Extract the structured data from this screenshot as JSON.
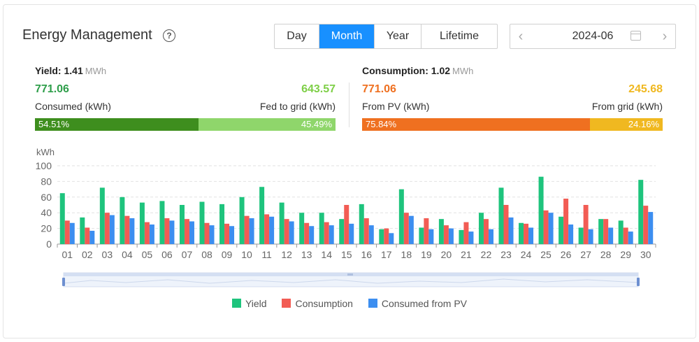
{
  "header": {
    "title": "Energy Management",
    "help_icon": "question-circle-icon",
    "tabs": [
      {
        "label": "Day",
        "active": false
      },
      {
        "label": "Month",
        "active": true
      },
      {
        "label": "Year",
        "active": false
      },
      {
        "label": "Lifetime",
        "active": false
      }
    ],
    "date": "2024-06",
    "prev_icon": "chevron-left-icon",
    "next_icon": "chevron-right-icon",
    "calendar_icon": "calendar-icon"
  },
  "yield": {
    "label": "Yield:",
    "value": "1.41",
    "unit": "MWh",
    "left_value": "771.06",
    "left_label": "Consumed (kWh)",
    "right_value": "643.57",
    "right_label": "Fed to grid (kWh)",
    "left_pct": "54.51%",
    "right_pct": "45.49%",
    "left_fraction": 0.5451,
    "left_color": "#3e8e1e",
    "right_color": "#8fd66b",
    "left_value_color": "#2e9e4a",
    "right_value_color": "#7ecf47"
  },
  "consumption": {
    "label": "Consumption:",
    "value": "1.02",
    "unit": "MWh",
    "left_value": "771.06",
    "left_label": "From PV (kWh)",
    "right_value": "245.68",
    "right_label": "From grid (kWh)",
    "left_pct": "75.84%",
    "right_pct": "24.16%",
    "left_fraction": 0.7584,
    "left_color": "#ef7020",
    "right_color": "#f0b820",
    "left_value_color": "#ef7020",
    "right_value_color": "#f0b820"
  },
  "chart_data": {
    "type": "bar",
    "ylabel": "kWh",
    "ylim": [
      0,
      100
    ],
    "yticks": [
      "0",
      "20",
      "40",
      "60",
      "80",
      "100"
    ],
    "grid": true,
    "categories": [
      "01",
      "02",
      "03",
      "04",
      "05",
      "06",
      "07",
      "08",
      "09",
      "10",
      "11",
      "12",
      "13",
      "14",
      "15",
      "16",
      "17",
      "18",
      "19",
      "20",
      "21",
      "22",
      "23",
      "24",
      "25",
      "26",
      "27",
      "28",
      "29",
      "30"
    ],
    "series": [
      {
        "name": "Yield",
        "color": "#1ec47d",
        "values": [
          65,
          34,
          72,
          60,
          53,
          55,
          50,
          54,
          51,
          60,
          73,
          53,
          40,
          40,
          32,
          51,
          19,
          70,
          21,
          32,
          18,
          40,
          72,
          27,
          86,
          35,
          21,
          32,
          30,
          82
        ]
      },
      {
        "name": "Consumption",
        "color": "#f25c54",
        "values": [
          30,
          21,
          40,
          36,
          28,
          33,
          32,
          27,
          26,
          36,
          38,
          32,
          27,
          28,
          50,
          33,
          20,
          40,
          33,
          24,
          28,
          32,
          50,
          26,
          43,
          58,
          50,
          32,
          21,
          49
        ]
      },
      {
        "name": "Consumed from PV",
        "color": "#3c8ef0",
        "values": [
          27,
          17,
          37,
          33,
          25,
          30,
          29,
          24,
          23,
          33,
          35,
          29,
          23,
          24,
          26,
          24,
          14,
          36,
          19,
          20,
          16,
          19,
          34,
          21,
          40,
          25,
          19,
          21,
          16,
          41
        ]
      }
    ],
    "legend_position": "bottom"
  }
}
